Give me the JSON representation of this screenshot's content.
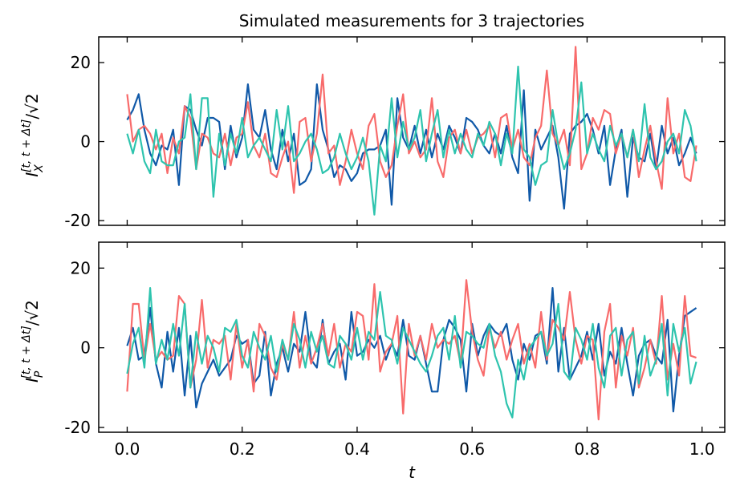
{
  "chart_data": [
    {
      "type": "line",
      "title": "Simulated measurements for 3 trajectories",
      "ylabel": {
        "symbol": "I",
        "sub": "X",
        "sup": "[t, t + Δt]",
        "rest": "/√2"
      },
      "xlim": [
        -0.0495,
        1.0395
      ],
      "ylim": [
        -21.2,
        26.5
      ],
      "xticks": [
        0,
        0.2,
        0.4,
        0.6,
        0.8,
        1
      ],
      "xticklabels": false,
      "yticks": [
        -20,
        0,
        20
      ],
      "x": [
        0,
        0.01,
        0.02,
        0.03,
        0.04,
        0.05,
        0.06,
        0.07,
        0.08,
        0.09,
        0.1,
        0.11,
        0.12,
        0.13,
        0.14,
        0.15,
        0.16,
        0.17,
        0.18,
        0.19,
        0.2,
        0.21,
        0.22,
        0.23,
        0.24,
        0.25,
        0.26,
        0.27,
        0.28,
        0.29,
        0.3,
        0.31,
        0.32,
        0.33,
        0.34,
        0.35,
        0.36,
        0.37,
        0.38,
        0.39,
        0.4,
        0.41,
        0.42,
        0.43,
        0.44,
        0.45,
        0.46,
        0.47,
        0.48,
        0.49,
        0.5,
        0.51,
        0.52,
        0.53,
        0.54,
        0.55,
        0.56,
        0.57,
        0.58,
        0.59,
        0.6,
        0.61,
        0.62,
        0.63,
        0.64,
        0.65,
        0.66,
        0.67,
        0.68,
        0.69,
        0.7,
        0.71,
        0.72,
        0.73,
        0.74,
        0.75,
        0.76,
        0.77,
        0.78,
        0.79,
        0.8,
        0.81,
        0.82,
        0.83,
        0.84,
        0.85,
        0.86,
        0.87,
        0.88,
        0.89,
        0.9,
        0.91,
        0.92,
        0.93,
        0.94,
        0.95,
        0.96,
        0.97,
        0.98,
        0.99
      ],
      "series": [
        {
          "color": "#1059a8",
          "values": [
            5.5,
            8,
            12,
            3,
            -3,
            -6,
            -1,
            -2,
            3,
            -11,
            9,
            8,
            3,
            -1,
            6,
            6,
            5,
            -7,
            4,
            -4,
            1,
            14.5,
            3,
            1,
            8,
            -2,
            -7,
            3,
            -5,
            2,
            -11,
            -10,
            -7,
            14.5,
            3,
            -2,
            -9,
            -6,
            -7,
            -10,
            -8,
            -3,
            -2,
            -2,
            -1,
            3,
            -16,
            11,
            1,
            -2,
            4,
            -3,
            3,
            -4,
            2,
            -2,
            4,
            1,
            -3,
            6,
            5,
            3,
            -1,
            -3,
            2,
            -3,
            4,
            -4,
            -8,
            13,
            -15,
            3,
            -2,
            1,
            4,
            -4,
            -17,
            2,
            4,
            5,
            7,
            3,
            -3,
            4,
            -11,
            -2,
            3,
            -14,
            1,
            -4,
            -5,
            2,
            -7,
            4,
            -3,
            1,
            -6,
            -3,
            1,
            -3
          ]
        },
        {
          "color": "#f86b6b",
          "values": [
            12,
            0,
            3,
            4,
            2,
            -2,
            2,
            -8,
            1,
            -3,
            9,
            6,
            -7,
            2,
            1,
            -3,
            -4,
            2,
            -6,
            1,
            2,
            10,
            -1,
            -4,
            2,
            -8,
            -9,
            -4,
            0,
            -13,
            5,
            6,
            -5,
            2,
            17,
            -3,
            -1,
            -11,
            -5,
            3,
            -3,
            -7,
            4,
            7,
            -5,
            -9,
            -6,
            4,
            12,
            -3,
            0,
            -4,
            -2,
            11,
            -5,
            -9,
            1,
            3,
            -3,
            3,
            -3,
            1,
            2,
            4,
            -4,
            6,
            7,
            -2,
            3,
            -4,
            -6,
            1,
            4,
            18,
            2,
            -1,
            3,
            -6,
            24,
            -7,
            -3,
            6,
            3,
            8,
            7,
            -3,
            2,
            -4,
            3,
            -9,
            -2,
            4,
            -5,
            -12,
            11,
            -3,
            2,
            -9,
            -10,
            -1
          ]
        },
        {
          "color": "#2ec4ae",
          "values": [
            2,
            -3,
            3,
            -5,
            -8,
            3,
            -5,
            -6,
            -6,
            0,
            1,
            12,
            -7,
            11,
            11,
            -14,
            2,
            -6,
            2,
            -3,
            6,
            -4,
            -1,
            1,
            -2,
            -5,
            8,
            -2,
            9,
            -5,
            -3,
            0,
            2,
            -2,
            -8,
            -7,
            -4,
            2,
            -3,
            -7,
            -4,
            1,
            -5,
            -18.5,
            -1,
            -5,
            11,
            -4,
            5,
            -2,
            1,
            8,
            -5,
            2,
            8,
            -4,
            3,
            -3,
            2,
            -2,
            -4,
            2,
            -1,
            5,
            2,
            -6,
            2,
            -3,
            19,
            -2,
            -4,
            -11,
            -6,
            -5,
            8,
            -1,
            -7,
            -3,
            3,
            15,
            -3,
            2,
            -2,
            -5,
            4,
            -1,
            2,
            -4,
            3,
            -5,
            9.5,
            -4,
            -7,
            -5,
            0,
            2,
            -3,
            8,
            4,
            -5
          ]
        }
      ]
    },
    {
      "type": "line",
      "ylabel": {
        "symbol": "I",
        "sub": "P",
        "sup": "[t, t + Δt]",
        "rest": "/√2"
      },
      "xlabel": "t",
      "xlim": [
        -0.0495,
        1.0395
      ],
      "ylim": [
        -21.2,
        26.5
      ],
      "xticks": [
        {
          "value": 0,
          "label": "0.0"
        },
        0.2,
        0.4,
        0.6,
        0.8,
        {
          "value": 1,
          "label": "1.0"
        }
      ],
      "xticklabels": true,
      "yticks": [
        -20,
        0,
        20
      ],
      "x": [
        0,
        0.01,
        0.02,
        0.03,
        0.04,
        0.05,
        0.06,
        0.07,
        0.08,
        0.09,
        0.1,
        0.11,
        0.12,
        0.13,
        0.14,
        0.15,
        0.16,
        0.17,
        0.18,
        0.19,
        0.2,
        0.21,
        0.22,
        0.23,
        0.24,
        0.25,
        0.26,
        0.27,
        0.28,
        0.29,
        0.3,
        0.31,
        0.32,
        0.33,
        0.34,
        0.35,
        0.36,
        0.37,
        0.38,
        0.39,
        0.4,
        0.41,
        0.42,
        0.43,
        0.44,
        0.45,
        0.46,
        0.47,
        0.48,
        0.49,
        0.5,
        0.51,
        0.52,
        0.53,
        0.54,
        0.55,
        0.56,
        0.57,
        0.58,
        0.59,
        0.6,
        0.61,
        0.62,
        0.63,
        0.64,
        0.65,
        0.66,
        0.67,
        0.68,
        0.69,
        0.7,
        0.71,
        0.72,
        0.73,
        0.74,
        0.75,
        0.76,
        0.77,
        0.78,
        0.79,
        0.8,
        0.81,
        0.82,
        0.83,
        0.84,
        0.85,
        0.86,
        0.87,
        0.88,
        0.89,
        0.9,
        0.91,
        0.92,
        0.93,
        0.94,
        0.95,
        0.96,
        0.97,
        0.98,
        0.99
      ],
      "series": [
        {
          "color": "#1059a8",
          "values": [
            0.5,
            5,
            -3,
            -2,
            10,
            -4,
            -10,
            4,
            -6,
            5,
            -12,
            3,
            -15,
            -9,
            -6,
            -3,
            -7,
            -5,
            -3,
            3,
            1,
            2,
            -9,
            -7,
            4,
            -12,
            -4,
            0,
            -6,
            1,
            -1,
            9,
            -3,
            -5,
            7,
            -4,
            -1,
            1,
            -8,
            9,
            -2,
            -1,
            2,
            0,
            3,
            -3,
            1,
            -2,
            7,
            -2,
            -3,
            3,
            -4,
            -11,
            -11,
            2,
            7,
            5,
            2,
            -11,
            6,
            -2,
            3,
            6,
            4,
            3,
            6,
            -3,
            -8,
            1,
            -3,
            3,
            4,
            -4,
            15,
            -6,
            5,
            -8,
            -5,
            -2,
            4,
            -3,
            6,
            -7,
            -1,
            -4,
            5,
            -4,
            -12,
            -2,
            1,
            2,
            -2,
            -4,
            7,
            -16,
            -2,
            8,
            9,
            10
          ]
        },
        {
          "color": "#f86b6b",
          "values": [
            -11,
            11,
            11,
            -3,
            6,
            -3,
            -1,
            -3,
            -2,
            13,
            11,
            -10,
            -3,
            12,
            -5,
            2,
            1,
            3,
            -8,
            6,
            -5,
            2,
            -11,
            6,
            3,
            -5,
            -8,
            1,
            -3,
            9,
            -5,
            3,
            -4,
            0,
            6,
            -2,
            6,
            -5,
            1,
            -1,
            9,
            8,
            -3,
            16,
            -6,
            -1,
            1,
            8,
            -16.5,
            6,
            -2,
            3,
            -3,
            6,
            0,
            2,
            1,
            3,
            -4,
            17,
            4,
            -3,
            -7,
            5,
            0,
            4,
            -3,
            2,
            6,
            -4,
            1,
            -5,
            9,
            -3,
            7,
            5,
            2,
            14,
            2,
            -4,
            3,
            2,
            -18,
            4,
            11,
            -10,
            3,
            -2,
            5,
            -10,
            -5,
            2,
            -4,
            13,
            -8,
            1,
            -7,
            13,
            -2,
            -2.5
          ]
        },
        {
          "color": "#2ec4ae",
          "values": [
            -6.5,
            1,
            5,
            -5,
            15,
            -4,
            2,
            -3,
            6,
            -2,
            11,
            -10,
            4,
            -4,
            3,
            0,
            -6,
            5,
            4,
            7,
            -2,
            -5,
            4,
            0,
            -3,
            3,
            -6,
            2,
            -3,
            6,
            2,
            -5,
            4,
            -1,
            3,
            -4,
            -5,
            3,
            1,
            -3,
            5,
            -3,
            4,
            2,
            14,
            3,
            2,
            -4,
            5,
            2,
            -1,
            -4,
            -6,
            -2,
            3,
            5,
            -3,
            8,
            -5,
            4,
            3,
            1,
            0,
            6,
            -2,
            -6,
            -14,
            -17.5,
            -3,
            -8,
            0,
            2,
            4,
            -2,
            1,
            11,
            -6,
            -8,
            5,
            2,
            -3,
            6,
            -5,
            -10,
            3,
            5,
            -7,
            2,
            4,
            -9,
            3,
            -7,
            -3,
            6,
            -12,
            6,
            -1,
            5,
            -9,
            -3.5
          ]
        }
      ]
    }
  ]
}
